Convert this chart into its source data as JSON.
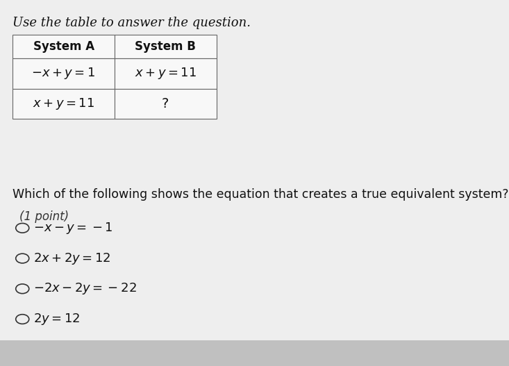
{
  "bg_light": "#eeeeee",
  "bg_bottom": "#c0c0c0",
  "instruction": "Use the table to answer the question.",
  "table_headers": [
    "System A",
    "System B"
  ],
  "table_row1": [
    "$-x+y=1$",
    "$x+y=11$"
  ],
  "table_row2": [
    "$x+y=11$",
    "?"
  ],
  "question": "Which of the following shows the equation that creates a true equivalent system?",
  "point": "(1 point)",
  "options": [
    "$-x-y=-1$",
    "$2x+2y=12$",
    "$-2x-2y=-22$",
    "$2y=12$"
  ],
  "figw": 7.33,
  "figh": 5.27,
  "dpi": 100
}
